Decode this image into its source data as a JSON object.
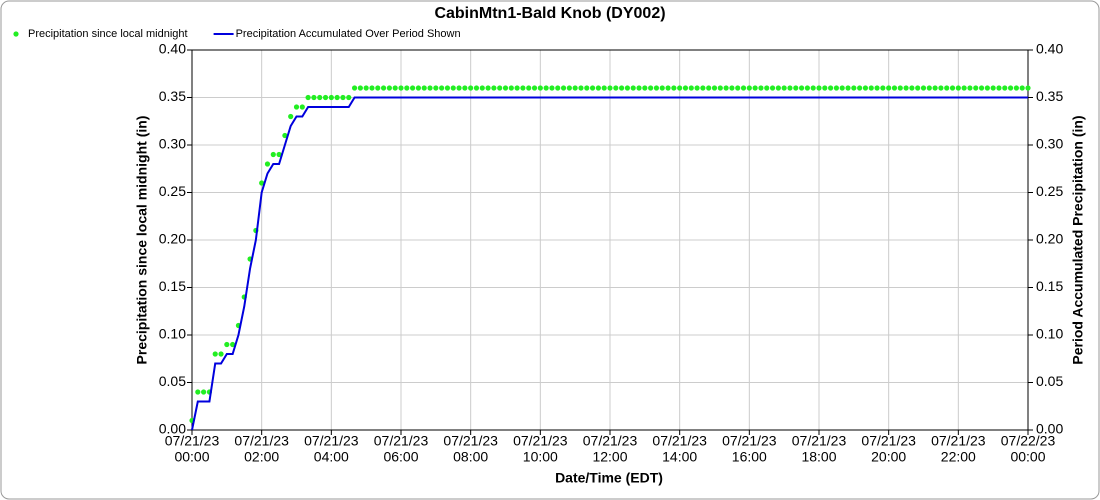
{
  "chart_data": {
    "type": "scatter-line",
    "title": "CabinMtn1-Bald Knob (DY002)",
    "x_label": "Date/Time (EDT)",
    "y_label": "Precipitation since local midnight (in)",
    "y2_label": "Period Accumulated Precipitation (in)",
    "legend": "top-left",
    "grid": true,
    "x": [
      "2023-07-21 00:00",
      "2023-07-21 00:10",
      "2023-07-21 00:20",
      "2023-07-21 00:30",
      "2023-07-21 00:40",
      "2023-07-21 00:50",
      "2023-07-21 01:00",
      "2023-07-21 01:10",
      "2023-07-21 01:20",
      "2023-07-21 01:30",
      "2023-07-21 01:40",
      "2023-07-21 01:50",
      "2023-07-21 02:00",
      "2023-07-21 02:10",
      "2023-07-21 02:20",
      "2023-07-21 02:30",
      "2023-07-21 02:40",
      "2023-07-21 02:50",
      "2023-07-21 03:00",
      "2023-07-21 03:10",
      "2023-07-21 03:20",
      "2023-07-21 03:30",
      "2023-07-21 03:40",
      "2023-07-21 03:50",
      "2023-07-21 04:00",
      "2023-07-21 04:10",
      "2023-07-21 04:20",
      "2023-07-21 04:30",
      "2023-07-21 04:40",
      "2023-07-21 04:50",
      "2023-07-21 05:00",
      "2023-07-21 05:10",
      "2023-07-21 05:20",
      "2023-07-21 05:30",
      "2023-07-21 05:40",
      "2023-07-21 05:50",
      "2023-07-21 06:00",
      "2023-07-21 06:10",
      "2023-07-21 06:20",
      "2023-07-21 06:30",
      "2023-07-21 06:40",
      "2023-07-21 06:50",
      "2023-07-21 07:00",
      "2023-07-21 07:10",
      "2023-07-21 07:20",
      "2023-07-21 07:30",
      "2023-07-21 07:40",
      "2023-07-21 07:50",
      "2023-07-21 08:00",
      "2023-07-21 08:10",
      "2023-07-21 08:20",
      "2023-07-21 08:30",
      "2023-07-21 08:40",
      "2023-07-21 08:50",
      "2023-07-21 09:00",
      "2023-07-21 09:10",
      "2023-07-21 09:20",
      "2023-07-21 09:30",
      "2023-07-21 09:40",
      "2023-07-21 09:50",
      "2023-07-21 10:00",
      "2023-07-21 10:10",
      "2023-07-21 10:20",
      "2023-07-21 10:30",
      "2023-07-21 10:40",
      "2023-07-21 10:50",
      "2023-07-21 11:00",
      "2023-07-21 11:10",
      "2023-07-21 11:20",
      "2023-07-21 11:30",
      "2023-07-21 11:40",
      "2023-07-21 11:50",
      "2023-07-21 12:00",
      "2023-07-21 12:10",
      "2023-07-21 12:20",
      "2023-07-21 12:30",
      "2023-07-21 12:40",
      "2023-07-21 12:50",
      "2023-07-21 13:00",
      "2023-07-21 13:10",
      "2023-07-21 13:20",
      "2023-07-21 13:30",
      "2023-07-21 13:40",
      "2023-07-21 13:50",
      "2023-07-21 14:00",
      "2023-07-21 14:10",
      "2023-07-21 14:20",
      "2023-07-21 14:30",
      "2023-07-21 14:40",
      "2023-07-21 14:50",
      "2023-07-21 15:00",
      "2023-07-21 15:10",
      "2023-07-21 15:20",
      "2023-07-21 15:30",
      "2023-07-21 15:40",
      "2023-07-21 15:50",
      "2023-07-21 16:00",
      "2023-07-21 16:10",
      "2023-07-21 16:20",
      "2023-07-21 16:30",
      "2023-07-21 16:40",
      "2023-07-21 16:50",
      "2023-07-21 17:00",
      "2023-07-21 17:10",
      "2023-07-21 17:20",
      "2023-07-21 17:30",
      "2023-07-21 17:40",
      "2023-07-21 17:50",
      "2023-07-21 18:00",
      "2023-07-21 18:10",
      "2023-07-21 18:20",
      "2023-07-21 18:30",
      "2023-07-21 18:40",
      "2023-07-21 18:50",
      "2023-07-21 19:00",
      "2023-07-21 19:10",
      "2023-07-21 19:20",
      "2023-07-21 19:30",
      "2023-07-21 19:40",
      "2023-07-21 19:50",
      "2023-07-21 20:00",
      "2023-07-21 20:10",
      "2023-07-21 20:20",
      "2023-07-21 20:30",
      "2023-07-21 20:40",
      "2023-07-21 20:50",
      "2023-07-21 21:00",
      "2023-07-21 21:10",
      "2023-07-21 21:20",
      "2023-07-21 21:30",
      "2023-07-21 21:40",
      "2023-07-21 21:50",
      "2023-07-21 22:00",
      "2023-07-21 22:10",
      "2023-07-21 22:20",
      "2023-07-21 22:30",
      "2023-07-21 22:40",
      "2023-07-21 22:50",
      "2023-07-21 23:00",
      "2023-07-21 23:10",
      "2023-07-21 23:20",
      "2023-07-21 23:30",
      "2023-07-21 23:40",
      "2023-07-21 23:50",
      "2023-07-22 00:00"
    ],
    "series": [
      {
        "name": "Precipitation since local midnight",
        "color": "#22ee22",
        "mark": "dot",
        "axis": "y",
        "values": [
          0.01,
          0.04,
          0.04,
          0.04,
          0.08,
          0.08,
          0.09,
          0.09,
          0.11,
          0.14,
          0.18,
          0.21,
          0.26,
          0.28,
          0.29,
          0.29,
          0.31,
          0.33,
          0.34,
          0.34,
          0.35,
          0.35,
          0.35,
          0.35,
          0.35,
          0.35,
          0.35,
          0.35,
          0.36,
          0.36,
          0.36,
          0.36,
          0.36,
          0.36,
          0.36,
          0.36,
          0.36,
          0.36,
          0.36,
          0.36,
          0.36,
          0.36,
          0.36,
          0.36,
          0.36,
          0.36,
          0.36,
          0.36,
          0.36,
          0.36,
          0.36,
          0.36,
          0.36,
          0.36,
          0.36,
          0.36,
          0.36,
          0.36,
          0.36,
          0.36,
          0.36,
          0.36,
          0.36,
          0.36,
          0.36,
          0.36,
          0.36,
          0.36,
          0.36,
          0.36,
          0.36,
          0.36,
          0.36,
          0.36,
          0.36,
          0.36,
          0.36,
          0.36,
          0.36,
          0.36,
          0.36,
          0.36,
          0.36,
          0.36,
          0.36,
          0.36,
          0.36,
          0.36,
          0.36,
          0.36,
          0.36,
          0.36,
          0.36,
          0.36,
          0.36,
          0.36,
          0.36,
          0.36,
          0.36,
          0.36,
          0.36,
          0.36,
          0.36,
          0.36,
          0.36,
          0.36,
          0.36,
          0.36,
          0.36,
          0.36,
          0.36,
          0.36,
          0.36,
          0.36,
          0.36,
          0.36,
          0.36,
          0.36,
          0.36,
          0.36,
          0.36,
          0.36,
          0.36,
          0.36,
          0.36,
          0.36,
          0.36,
          0.36,
          0.36,
          0.36,
          0.36,
          0.36,
          0.36,
          0.36,
          0.36,
          0.36,
          0.36,
          0.36,
          0.36,
          0.36,
          0.36,
          0.36,
          0.36,
          0.36,
          0.36
        ]
      },
      {
        "name": "Precipitation Accumulated Over Period Shown",
        "color": "#0000dd",
        "mark": "line",
        "axis": "y2",
        "values": [
          0.0,
          0.03,
          0.03,
          0.03,
          0.07,
          0.07,
          0.08,
          0.08,
          0.1,
          0.13,
          0.17,
          0.2,
          0.25,
          0.27,
          0.28,
          0.28,
          0.3,
          0.32,
          0.33,
          0.33,
          0.34,
          0.34,
          0.34,
          0.34,
          0.34,
          0.34,
          0.34,
          0.34,
          0.35,
          0.35,
          0.35,
          0.35,
          0.35,
          0.35,
          0.35,
          0.35,
          0.35,
          0.35,
          0.35,
          0.35,
          0.35,
          0.35,
          0.35,
          0.35,
          0.35,
          0.35,
          0.35,
          0.35,
          0.35,
          0.35,
          0.35,
          0.35,
          0.35,
          0.35,
          0.35,
          0.35,
          0.35,
          0.35,
          0.35,
          0.35,
          0.35,
          0.35,
          0.35,
          0.35,
          0.35,
          0.35,
          0.35,
          0.35,
          0.35,
          0.35,
          0.35,
          0.35,
          0.35,
          0.35,
          0.35,
          0.35,
          0.35,
          0.35,
          0.35,
          0.35,
          0.35,
          0.35,
          0.35,
          0.35,
          0.35,
          0.35,
          0.35,
          0.35,
          0.35,
          0.35,
          0.35,
          0.35,
          0.35,
          0.35,
          0.35,
          0.35,
          0.35,
          0.35,
          0.35,
          0.35,
          0.35,
          0.35,
          0.35,
          0.35,
          0.35,
          0.35,
          0.35,
          0.35,
          0.35,
          0.35,
          0.35,
          0.35,
          0.35,
          0.35,
          0.35,
          0.35,
          0.35,
          0.35,
          0.35,
          0.35,
          0.35,
          0.35,
          0.35,
          0.35,
          0.35,
          0.35,
          0.35,
          0.35,
          0.35,
          0.35,
          0.35,
          0.35,
          0.35,
          0.35,
          0.35,
          0.35,
          0.35,
          0.35,
          0.35,
          0.35,
          0.35,
          0.35,
          0.35,
          0.35,
          0.35
        ]
      }
    ],
    "xlim": [
      "2023-07-21 00:00",
      "2023-07-22 00:00"
    ],
    "xticks": [
      {
        "value": "2023-07-21 00:00",
        "label": [
          "07/21/23",
          "00:00"
        ]
      },
      {
        "value": "2023-07-21 02:00",
        "label": [
          "07/21/23",
          "02:00"
        ]
      },
      {
        "value": "2023-07-21 04:00",
        "label": [
          "07/21/23",
          "04:00"
        ]
      },
      {
        "value": "2023-07-21 06:00",
        "label": [
          "07/21/23",
          "06:00"
        ]
      },
      {
        "value": "2023-07-21 08:00",
        "label": [
          "07/21/23",
          "08:00"
        ]
      },
      {
        "value": "2023-07-21 10:00",
        "label": [
          "07/21/23",
          "10:00"
        ]
      },
      {
        "value": "2023-07-21 12:00",
        "label": [
          "07/21/23",
          "12:00"
        ]
      },
      {
        "value": "2023-07-21 14:00",
        "label": [
          "07/21/23",
          "14:00"
        ]
      },
      {
        "value": "2023-07-21 16:00",
        "label": [
          "07/21/23",
          "16:00"
        ]
      },
      {
        "value": "2023-07-21 18:00",
        "label": [
          "07/21/23",
          "18:00"
        ]
      },
      {
        "value": "2023-07-21 20:00",
        "label": [
          "07/21/23",
          "20:00"
        ]
      },
      {
        "value": "2023-07-21 22:00",
        "label": [
          "07/21/23",
          "22:00"
        ]
      },
      {
        "value": "2023-07-22 00:00",
        "label": [
          "07/22/23",
          "00:00"
        ]
      }
    ],
    "ylim": [
      0,
      0.4
    ],
    "yticks": [
      {
        "value": 0,
        "label": "0.00"
      },
      {
        "value": 0.05,
        "label": "0.05"
      },
      {
        "value": 0.1,
        "label": "0.10"
      },
      {
        "value": 0.15,
        "label": "0.15"
      },
      {
        "value": 0.2,
        "label": "0.20"
      },
      {
        "value": 0.25,
        "label": "0.25"
      },
      {
        "value": 0.3,
        "label": "0.30"
      },
      {
        "value": 0.35,
        "label": "0.35"
      },
      {
        "value": 0.4,
        "label": "0.40"
      }
    ],
    "y2lim": [
      0,
      0.4
    ],
    "y2ticks": [
      {
        "value": 0,
        "label": "0.00"
      },
      {
        "value": 0.05,
        "label": "0.05"
      },
      {
        "value": 0.1,
        "label": "0.10"
      },
      {
        "value": 0.15,
        "label": "0.15"
      },
      {
        "value": 0.2,
        "label": "0.20"
      },
      {
        "value": 0.25,
        "label": "0.25"
      },
      {
        "value": 0.3,
        "label": "0.30"
      },
      {
        "value": 0.35,
        "label": "0.35"
      },
      {
        "value": 0.4,
        "label": "0.40"
      }
    ]
  }
}
